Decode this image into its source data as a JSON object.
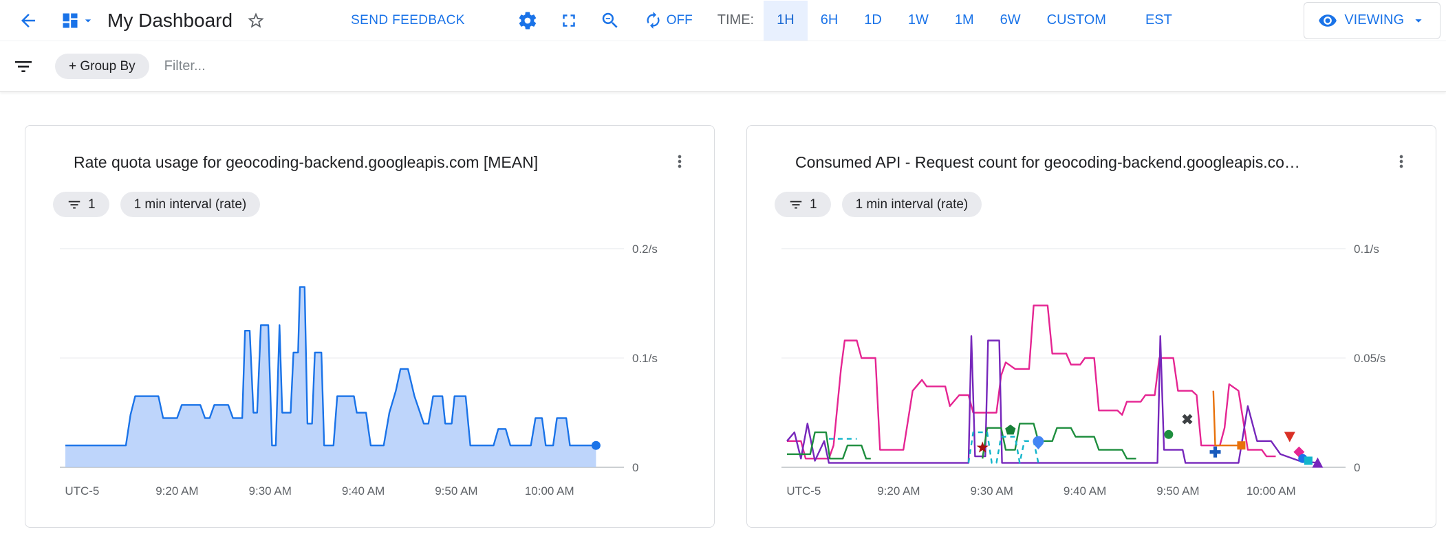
{
  "header": {
    "title": "My Dashboard",
    "send_feedback_label": "SEND FEEDBACK",
    "auto_refresh_label": "OFF",
    "time_label": "TIME:",
    "time_ranges": [
      {
        "label": "1H",
        "selected": true
      },
      {
        "label": "6H",
        "selected": false
      },
      {
        "label": "1D",
        "selected": false
      },
      {
        "label": "1W",
        "selected": false
      },
      {
        "label": "1M",
        "selected": false
      },
      {
        "label": "6W",
        "selected": false
      },
      {
        "label": "CUSTOM",
        "selected": false
      }
    ],
    "timezone_label": "EST",
    "viewing_label": "VIEWING"
  },
  "filter_bar": {
    "group_by_label": "+ Group By",
    "filter_placeholder": "Filter..."
  },
  "cards": [
    {
      "title": "Rate quota usage for geocoding-backend.googleapis.com [MEAN]",
      "filter_chip_count": "1",
      "interval_chip_label": "1 min interval (rate)"
    },
    {
      "title": "Consumed API - Request count for geocoding-backend.googleapis.co…",
      "filter_chip_count": "1",
      "interval_chip_label": "1 min interval (rate)"
    }
  ],
  "colors": {
    "accent_blue": "#1a73e8",
    "selected_time_bg": "#e8f0fe",
    "area_fill": "#aecbfa",
    "area_stroke": "#1a73e8",
    "grid": "#e8eaed",
    "axis": "#9aa0a6",
    "tick_text": "#5f6368"
  },
  "chart_data": [
    {
      "type": "area",
      "title": "Rate quota usage for geocoding-backend.googleapis.com [MEAN]",
      "x_unit": "minutes since 9:08 AM",
      "y_unit": "/s",
      "xlim": [
        0,
        60
      ],
      "ylim": [
        0,
        0.21
      ],
      "grid": true,
      "yticks": [
        {
          "v": 0,
          "label": "0"
        },
        {
          "v": 0.1,
          "label": "0.1/s"
        },
        {
          "v": 0.2,
          "label": "0.2/s"
        }
      ],
      "xticks": [
        {
          "min": 1.8,
          "label": "UTC-5"
        },
        {
          "min": 12,
          "label": "9:20 AM"
        },
        {
          "min": 22,
          "label": "9:30 AM"
        },
        {
          "min": 32,
          "label": "9:40 AM"
        },
        {
          "min": 42,
          "label": "9:50 AM"
        },
        {
          "min": 52,
          "label": "10:00 AM"
        }
      ],
      "series": [
        {
          "name": "rate-quota-usage-mean",
          "color": "#1a73e8",
          "fill": "#aecbfa",
          "points": [
            [
              0,
              0.02
            ],
            [
              5,
              0.02
            ],
            [
              6.5,
              0.02
            ],
            [
              7,
              0.048
            ],
            [
              7.5,
              0.065
            ],
            [
              9,
              0.065
            ],
            [
              10,
              0.065
            ],
            [
              10.5,
              0.045
            ],
            [
              12,
              0.045
            ],
            [
              12.5,
              0.057
            ],
            [
              14.5,
              0.057
            ],
            [
              15,
              0.045
            ],
            [
              15.5,
              0.045
            ],
            [
              16,
              0.057
            ],
            [
              17.5,
              0.057
            ],
            [
              18,
              0.045
            ],
            [
              19,
              0.045
            ],
            [
              19.3,
              0.125
            ],
            [
              19.8,
              0.125
            ],
            [
              20.2,
              0.05
            ],
            [
              20.6,
              0.05
            ],
            [
              21,
              0.13
            ],
            [
              21.8,
              0.13
            ],
            [
              22.2,
              0.02
            ],
            [
              22.6,
              0.02
            ],
            [
              23,
              0.13
            ],
            [
              23.3,
              0.05
            ],
            [
              24.2,
              0.05
            ],
            [
              24.5,
              0.105
            ],
            [
              25,
              0.105
            ],
            [
              25.2,
              0.165
            ],
            [
              25.7,
              0.165
            ],
            [
              26,
              0.04
            ],
            [
              26.5,
              0.04
            ],
            [
              26.8,
              0.105
            ],
            [
              27.5,
              0.105
            ],
            [
              27.8,
              0.02
            ],
            [
              28.8,
              0.02
            ],
            [
              29.2,
              0.065
            ],
            [
              31,
              0.065
            ],
            [
              31.3,
              0.05
            ],
            [
              32.3,
              0.05
            ],
            [
              32.8,
              0.02
            ],
            [
              34.2,
              0.02
            ],
            [
              34.8,
              0.05
            ],
            [
              35.5,
              0.07
            ],
            [
              36,
              0.09
            ],
            [
              36.8,
              0.09
            ],
            [
              37.5,
              0.065
            ],
            [
              38.5,
              0.04
            ],
            [
              39,
              0.04
            ],
            [
              39.5,
              0.065
            ],
            [
              40.5,
              0.065
            ],
            [
              40.8,
              0.04
            ],
            [
              41.5,
              0.04
            ],
            [
              41.8,
              0.065
            ],
            [
              43,
              0.065
            ],
            [
              43.5,
              0.02
            ],
            [
              46,
              0.02
            ],
            [
              46.5,
              0.035
            ],
            [
              47.3,
              0.035
            ],
            [
              47.8,
              0.02
            ],
            [
              50,
              0.02
            ],
            [
              50.5,
              0.045
            ],
            [
              51.2,
              0.045
            ],
            [
              51.6,
              0.02
            ],
            [
              52.4,
              0.02
            ],
            [
              52.8,
              0.045
            ],
            [
              53.8,
              0.045
            ],
            [
              54.2,
              0.02
            ],
            [
              57,
              0.02
            ]
          ]
        }
      ],
      "markers": [
        {
          "type": "circle",
          "x": 57,
          "y": 0.02,
          "color": "#1a73e8"
        }
      ]
    },
    {
      "type": "line",
      "title": "Consumed API - Request count for geocoding-backend.googleapis.com",
      "x_unit": "minutes since 9:08 AM",
      "y_unit": "/s",
      "xlim": [
        0,
        60
      ],
      "ylim": [
        0,
        0.105
      ],
      "grid": true,
      "yticks": [
        {
          "v": 0,
          "label": "0"
        },
        {
          "v": 0.05,
          "label": "0.05/s"
        },
        {
          "v": 0.1,
          "label": "0.1/s"
        }
      ],
      "xticks": [
        {
          "min": 1.8,
          "label": "UTC-5"
        },
        {
          "min": 12,
          "label": "9:20 AM"
        },
        {
          "min": 22,
          "label": "9:30 AM"
        },
        {
          "min": 32,
          "label": "9:40 AM"
        },
        {
          "min": 42,
          "label": "9:50 AM"
        },
        {
          "min": 52,
          "label": "10:00 AM"
        }
      ],
      "series": [
        {
          "name": "pink",
          "color": "#E52592",
          "points": [
            [
              0,
              0.012
            ],
            [
              1.5,
              0.012
            ],
            [
              2,
              0.004
            ],
            [
              4.5,
              0.004
            ],
            [
              5,
              0.01
            ],
            [
              5.8,
              0.045
            ],
            [
              6.2,
              0.058
            ],
            [
              7.5,
              0.058
            ],
            [
              8,
              0.05
            ],
            [
              9.5,
              0.05
            ],
            [
              10,
              0.008
            ],
            [
              12.5,
              0.008
            ],
            [
              13.5,
              0.035
            ],
            [
              14.5,
              0.04
            ],
            [
              15,
              0.037
            ],
            [
              17,
              0.037
            ],
            [
              17.5,
              0.028
            ],
            [
              18.5,
              0.033
            ],
            [
              19.5,
              0.033
            ],
            [
              20,
              0.025
            ],
            [
              22.5,
              0.025
            ],
            [
              23,
              0.042
            ],
            [
              23.5,
              0.048
            ],
            [
              24.5,
              0.045
            ],
            [
              26,
              0.045
            ],
            [
              26.5,
              0.074
            ],
            [
              28,
              0.074
            ],
            [
              28.5,
              0.052
            ],
            [
              30,
              0.052
            ],
            [
              30.5,
              0.047
            ],
            [
              31.5,
              0.047
            ],
            [
              32,
              0.05
            ],
            [
              33,
              0.05
            ],
            [
              33.5,
              0.026
            ],
            [
              35.5,
              0.026
            ],
            [
              36,
              0.024
            ],
            [
              36.5,
              0.03
            ],
            [
              38,
              0.03
            ],
            [
              38.5,
              0.033
            ],
            [
              39.5,
              0.033
            ],
            [
              40,
              0.05
            ],
            [
              41.5,
              0.05
            ],
            [
              42,
              0.035
            ],
            [
              43.5,
              0.035
            ],
            [
              44,
              0.033
            ],
            [
              44.5,
              0.01
            ],
            [
              46.5,
              0.01
            ],
            [
              47,
              0.018
            ],
            [
              47.5,
              0.038
            ],
            [
              48.5,
              0.035
            ],
            [
              49.5,
              0.008
            ],
            [
              51,
              0.008
            ],
            [
              51.5,
              0.005
            ],
            [
              52.5,
              0.005
            ]
          ]
        },
        {
          "name": "purple",
          "color": "#7627BB",
          "points": [
            [
              0,
              0.012
            ],
            [
              0.8,
              0.016
            ],
            [
              1.5,
              0.004
            ],
            [
              2.2,
              0.02
            ],
            [
              3,
              0.003
            ],
            [
              4,
              0.012
            ],
            [
              4.5,
              0.002
            ],
            [
              19.5,
              0.002
            ],
            [
              19.8,
              0.06
            ],
            [
              20.2,
              0.005
            ],
            [
              21.3,
              0.005
            ],
            [
              21.6,
              0.058
            ],
            [
              22.8,
              0.058
            ],
            [
              23.1,
              0.002
            ],
            [
              39.8,
              0.002
            ],
            [
              40.1,
              0.06
            ],
            [
              40.5,
              0.008
            ],
            [
              42.5,
              0.008
            ],
            [
              42.8,
              0.002
            ],
            [
              48.5,
              0.002
            ],
            [
              49.5,
              0.028
            ],
            [
              50.5,
              0.012
            ],
            [
              52,
              0.012
            ],
            [
              53,
              0.006
            ],
            [
              55,
              0.003
            ],
            [
              57,
              0.002
            ]
          ]
        },
        {
          "name": "green-early",
          "color": "#1E8E3E",
          "points": [
            [
              0,
              0.006
            ],
            [
              2.5,
              0.006
            ],
            [
              3,
              0.016
            ],
            [
              4.2,
              0.016
            ],
            [
              4.6,
              0.004
            ],
            [
              6,
              0.004
            ],
            [
              6.5,
              0.01
            ],
            [
              8,
              0.01
            ],
            [
              8.5,
              0.004
            ],
            [
              9,
              0.004
            ]
          ]
        },
        {
          "name": "green-main",
          "color": "#1E8E3E",
          "points": [
            [
              21,
              0.004
            ],
            [
              21.5,
              0.018
            ],
            [
              23,
              0.018
            ],
            [
              23.5,
              0.008
            ],
            [
              24.5,
              0.008
            ],
            [
              25,
              0.02
            ],
            [
              26.5,
              0.02
            ],
            [
              27,
              0.012
            ],
            [
              28.5,
              0.012
            ],
            [
              29,
              0.018
            ],
            [
              30.5,
              0.018
            ],
            [
              31,
              0.014
            ],
            [
              33,
              0.014
            ],
            [
              33.5,
              0.008
            ],
            [
              36,
              0.008
            ],
            [
              36.5,
              0.004
            ],
            [
              37.5,
              0.004
            ]
          ]
        },
        {
          "name": "cyan-dashed",
          "color": "#12B5CB",
          "dash": true,
          "points": [
            [
              19.5,
              0.002
            ],
            [
              20,
              0.016
            ],
            [
              21.5,
              0.016
            ],
            [
              22,
              0.002
            ],
            [
              22.5,
              0.002
            ],
            [
              23,
              0.014
            ],
            [
              24.5,
              0.014
            ],
            [
              25,
              0.002
            ],
            [
              25.5,
              0.012
            ],
            [
              26.5,
              0.012
            ],
            [
              27,
              0.002
            ]
          ]
        },
        {
          "name": "teal-dashed-early",
          "color": "#12B5CB",
          "dash": true,
          "points": [
            [
              4.5,
              0.013
            ],
            [
              7.5,
              0.013
            ]
          ]
        },
        {
          "name": "orange",
          "color": "#E8710A",
          "points": [
            [
              45.8,
              0.035
            ],
            [
              46,
              0.01
            ],
            [
              48.8,
              0.01
            ]
          ]
        }
      ],
      "markers": [
        {
          "type": "star",
          "x": 21,
          "y": 0.009,
          "color": "#A50E0E"
        },
        {
          "type": "pentagon",
          "x": 24,
          "y": 0.017,
          "color": "#188038"
        },
        {
          "type": "drop",
          "x": 27,
          "y": 0.011,
          "color": "#4285F4"
        },
        {
          "type": "circle",
          "x": 41,
          "y": 0.015,
          "color": "#1E8E3E"
        },
        {
          "type": "x",
          "x": 43,
          "y": 0.022,
          "color": "#3C4043"
        },
        {
          "type": "plus",
          "x": 46,
          "y": 0.007,
          "color": "#185ABC"
        },
        {
          "type": "square",
          "x": 48.8,
          "y": 0.01,
          "color": "#E8710A"
        },
        {
          "type": "triangle-down",
          "x": 54,
          "y": 0.014,
          "color": "#D93025"
        },
        {
          "type": "diamond",
          "x": 55,
          "y": 0.007,
          "color": "#E52592"
        },
        {
          "type": "circle",
          "x": 55.4,
          "y": 0.004,
          "color": "#1A73E8"
        },
        {
          "type": "square",
          "x": 56,
          "y": 0.003,
          "color": "#12B5CB"
        },
        {
          "type": "triangle-up",
          "x": 57,
          "y": 0.002,
          "color": "#7627BB"
        }
      ]
    }
  ]
}
